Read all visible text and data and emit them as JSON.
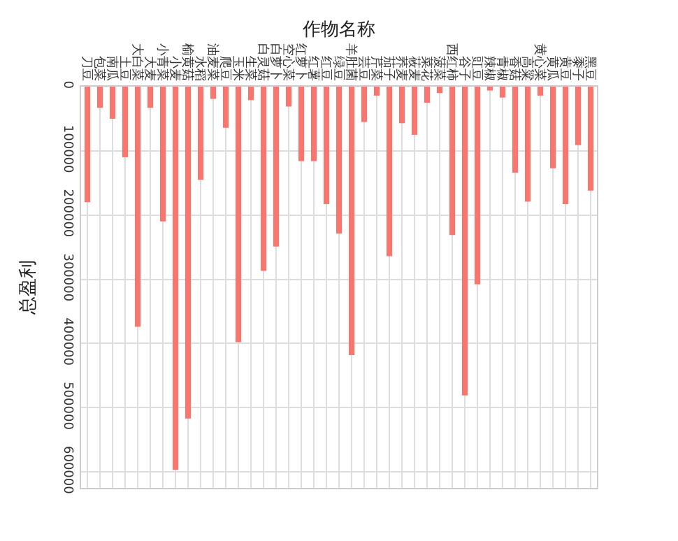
{
  "chart_data": {
    "type": "bar",
    "xlabel": "作物名称",
    "ylabel": "总盈利",
    "categories": [
      "刀豆",
      "包菜",
      "南瓜",
      "土豆",
      "大白菜",
      "大麦",
      "小青菜",
      "小麦",
      "榆黄菇",
      "水稻",
      "油麦菜",
      "爬豆",
      "玉米",
      "生菜",
      "白灵菇",
      "白萝卜",
      "空心菜",
      "红萝卜",
      "红薯",
      "红豆",
      "绿豆",
      "羊肚菌",
      "芸豆",
      "芹菜",
      "茄子",
      "荞麦",
      "莜麦",
      "菜花",
      "菠菜",
      "西红柿",
      "谷子",
      "豇豆",
      "辣椒",
      "青椒",
      "香菇",
      "高粱",
      "黄心菜",
      "黄瓜",
      "黄豆",
      "黍子",
      "黑豆"
    ],
    "values": [
      180000,
      33000,
      50000,
      110000,
      374000,
      33000,
      210000,
      597000,
      517000,
      145000,
      19000,
      64000,
      398000,
      21000,
      287000,
      249000,
      31000,
      116000,
      116000,
      183000,
      229000,
      418000,
      55000,
      14000,
      264000,
      57000,
      75000,
      25000,
      10000,
      231000,
      481000,
      308000,
      6000,
      17000,
      134000,
      179000,
      14000,
      127000,
      183000,
      91000,
      162000
    ],
    "color": "#f8766d",
    "ylim": [
      625000,
      0
    ],
    "yticks": [
      0,
      100000,
      200000,
      300000,
      400000,
      500000,
      600000
    ],
    "grid": true
  }
}
